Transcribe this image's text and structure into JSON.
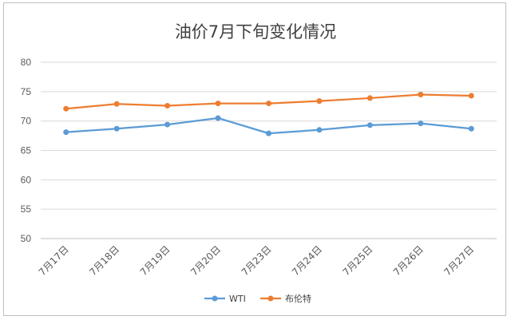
{
  "chart_data": {
    "type": "line",
    "title": "油价7月下旬变化情况",
    "categories": [
      "7月17日",
      "7月18日",
      "7月19日",
      "7月20日",
      "7月23日",
      "7月24日",
      "7月25日",
      "7月26日",
      "7月27日"
    ],
    "ylim": [
      50,
      80
    ],
    "yticks": [
      50,
      55,
      60,
      65,
      70,
      75,
      80
    ],
    "grid": true,
    "legend_position": "bottom",
    "series": [
      {
        "name": "WTI",
        "color": "#5b9bd5",
        "values": [
          68.1,
          68.7,
          69.4,
          70.5,
          67.9,
          68.5,
          69.3,
          69.6,
          68.7
        ]
      },
      {
        "name": "布伦特",
        "color": "#ed7d31",
        "values": [
          72.1,
          72.9,
          72.6,
          73.0,
          73.0,
          73.4,
          73.9,
          74.5,
          74.3
        ]
      }
    ]
  }
}
